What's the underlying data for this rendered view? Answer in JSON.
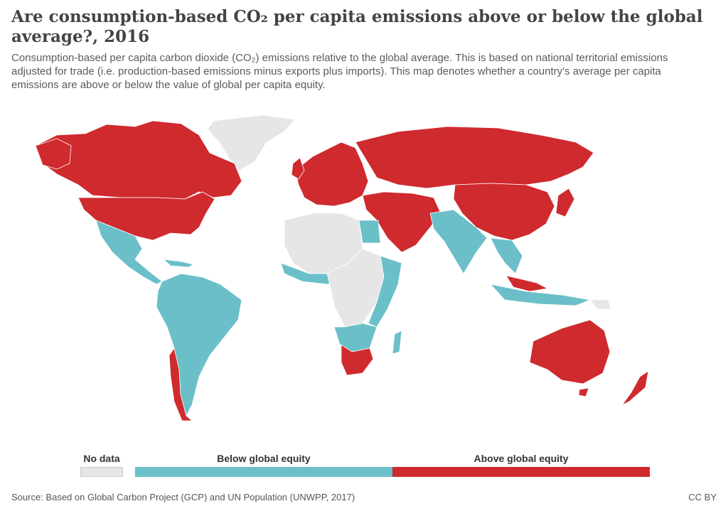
{
  "header": {
    "title": "Are consumption-based CO₂ per capita emissions above or below the global average?, 2016",
    "subtitle": "Consumption-based per capita carbon dioxide (CO₂) emissions relative to the global average. This is based on national territorial emissions adjusted for trade (i.e. production-based emissions minus exports plus imports). This map denotes whether a country's average per capita emissions are above or below the value of global per capita equity."
  },
  "legend": {
    "no_data": {
      "label": "No data",
      "color": "#e6e6e6"
    },
    "below": {
      "label": "Below global equity",
      "color": "#6bbfc9"
    },
    "above": {
      "label": "Above global equity",
      "color": "#cf2a2e"
    }
  },
  "footer": {
    "source": "Source: Based on Global Carbon Project (GCP) and UN Population (UNWPP, 2017)",
    "license": "CC BY"
  },
  "colors": {
    "border": "#ffffff"
  }
}
